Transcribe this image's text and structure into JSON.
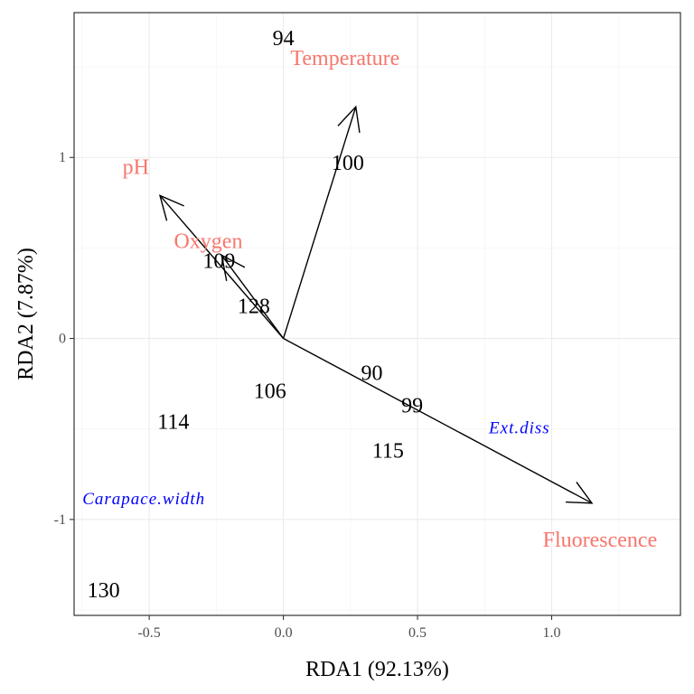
{
  "chart_data": {
    "type": "scatter",
    "subtype": "rda-biplot",
    "title": "",
    "xlabel": "RDA1 (92.13%)",
    "ylabel": "RDA2 (7.87%)",
    "xlim": [
      -0.78,
      1.48
    ],
    "ylim": [
      -1.53,
      1.8
    ],
    "x_ticks": [
      -0.5,
      0.0,
      0.5,
      1.0
    ],
    "x_tick_labels": [
      "-0.5",
      "0.0",
      "0.5",
      "1.0"
    ],
    "y_ticks": [
      -1,
      0,
      1
    ],
    "y_tick_labels": [
      "-1",
      "0",
      "1"
    ],
    "grid": true,
    "colors": {
      "environment": "#F8766D",
      "species": "#0000FF",
      "sites": "#000000",
      "arrows": "#000000",
      "grid_major": "#EBEBEB",
      "grid_minor": "#F5F5F5"
    },
    "sites": [
      {
        "label": "94",
        "x": 0.0,
        "y": 1.66
      },
      {
        "label": "100",
        "x": 0.24,
        "y": 0.97
      },
      {
        "label": "109",
        "x": -0.24,
        "y": 0.43
      },
      {
        "label": "128",
        "x": -0.11,
        "y": 0.18
      },
      {
        "label": "90",
        "x": 0.33,
        "y": -0.19
      },
      {
        "label": "106",
        "x": -0.05,
        "y": -0.29
      },
      {
        "label": "99",
        "x": 0.48,
        "y": -0.37
      },
      {
        "label": "114",
        "x": -0.41,
        "y": -0.46
      },
      {
        "label": "115",
        "x": 0.39,
        "y": -0.62
      },
      {
        "label": "130",
        "x": -0.67,
        "y": -1.39
      }
    ],
    "environment": [
      {
        "label": "Temperature",
        "arrow_x": 0.27,
        "arrow_y": 1.28,
        "label_x": 0.23,
        "label_y": 1.55
      },
      {
        "label": "pH",
        "arrow_x": -0.46,
        "arrow_y": 0.79,
        "label_x": -0.55,
        "label_y": 0.95
      },
      {
        "label": "Oxygen",
        "arrow_x": -0.23,
        "arrow_y": 0.46,
        "label_x": -0.28,
        "label_y": 0.54
      },
      {
        "label": "Fluorescence",
        "arrow_x": 1.15,
        "arrow_y": -0.91,
        "label_x": 1.18,
        "label_y": -1.11
      }
    ],
    "species": [
      {
        "label": "Ext.diss",
        "x": 0.88,
        "y": -0.49
      },
      {
        "label": "Carapace.width",
        "x": -0.52,
        "y": -0.88
      }
    ]
  }
}
